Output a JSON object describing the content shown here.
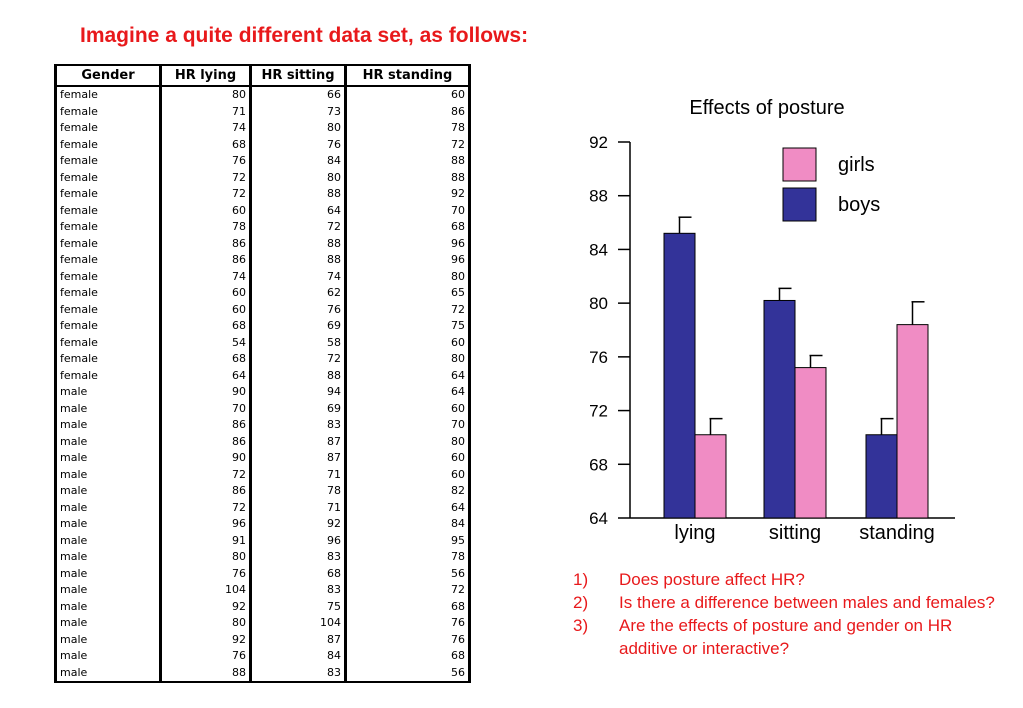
{
  "heading": "Imagine a quite different data set, as follows:",
  "table": {
    "columns": [
      "Gender",
      "HR lying",
      "HR sitting",
      "HR standing"
    ],
    "rows": [
      [
        "female",
        "80",
        "66",
        "60"
      ],
      [
        "female",
        "71",
        "73",
        "86"
      ],
      [
        "female",
        "74",
        "80",
        "78"
      ],
      [
        "female",
        "68",
        "76",
        "72"
      ],
      [
        "female",
        "76",
        "84",
        "88"
      ],
      [
        "female",
        "72",
        "80",
        "88"
      ],
      [
        "female",
        "72",
        "88",
        "92"
      ],
      [
        "female",
        "60",
        "64",
        "70"
      ],
      [
        "female",
        "78",
        "72",
        "68"
      ],
      [
        "female",
        "86",
        "88",
        "96"
      ],
      [
        "female",
        "86",
        "88",
        "96"
      ],
      [
        "female",
        "74",
        "74",
        "80"
      ],
      [
        "female",
        "60",
        "62",
        "65"
      ],
      [
        "female",
        "60",
        "76",
        "72"
      ],
      [
        "female",
        "68",
        "69",
        "75"
      ],
      [
        "female",
        "54",
        "58",
        "60"
      ],
      [
        "female",
        "68",
        "72",
        "80"
      ],
      [
        "female",
        "64",
        "88",
        "64"
      ],
      [
        "male",
        "90",
        "94",
        "64"
      ],
      [
        "male",
        "70",
        "69",
        "60"
      ],
      [
        "male",
        "86",
        "83",
        "70"
      ],
      [
        "male",
        "86",
        "87",
        "80"
      ],
      [
        "male",
        "90",
        "87",
        "60"
      ],
      [
        "male",
        "72",
        "71",
        "60"
      ],
      [
        "male",
        "86",
        "78",
        "82"
      ],
      [
        "male",
        "72",
        "71",
        "64"
      ],
      [
        "male",
        "96",
        "92",
        "84"
      ],
      [
        "male",
        "91",
        "96",
        "95"
      ],
      [
        "male",
        "80",
        "83",
        "78"
      ],
      [
        "male",
        "76",
        "68",
        "56"
      ],
      [
        "male",
        "104",
        "83",
        "72"
      ],
      [
        "male",
        "92",
        "75",
        "68"
      ],
      [
        "male",
        "80",
        "104",
        "76"
      ],
      [
        "male",
        "92",
        "87",
        "76"
      ],
      [
        "male",
        "76",
        "84",
        "68"
      ],
      [
        "male",
        "88",
        "83",
        "56"
      ]
    ]
  },
  "chart_data": {
    "type": "bar",
    "title": "Effects of posture",
    "xlabel": "",
    "ylabel": "",
    "categories": [
      "lying",
      "sitting",
      "standing"
    ],
    "series": [
      {
        "name": "boys",
        "color": "#333399",
        "values": [
          85.2,
          80.2,
          70.2
        ],
        "errors": [
          1.2,
          0.9,
          1.2
        ]
      },
      {
        "name": "girls",
        "color": "#f08cc4",
        "values": [
          70.2,
          75.2,
          78.4
        ],
        "errors": [
          1.2,
          0.9,
          1.7
        ]
      }
    ],
    "ylim": [
      64,
      92
    ],
    "yticks": [
      64,
      68,
      72,
      76,
      80,
      84,
      88,
      92
    ],
    "legend_order": [
      "girls",
      "boys"
    ],
    "legend_position": "top-right",
    "grid": false
  },
  "questions": [
    {
      "num": "1)",
      "text": "Does posture affect HR?"
    },
    {
      "num": "2)",
      "text": "Is there a difference between males and females?"
    },
    {
      "num": "3)",
      "text": "Are the effects of posture and gender on HR additive or interactive?"
    }
  ]
}
